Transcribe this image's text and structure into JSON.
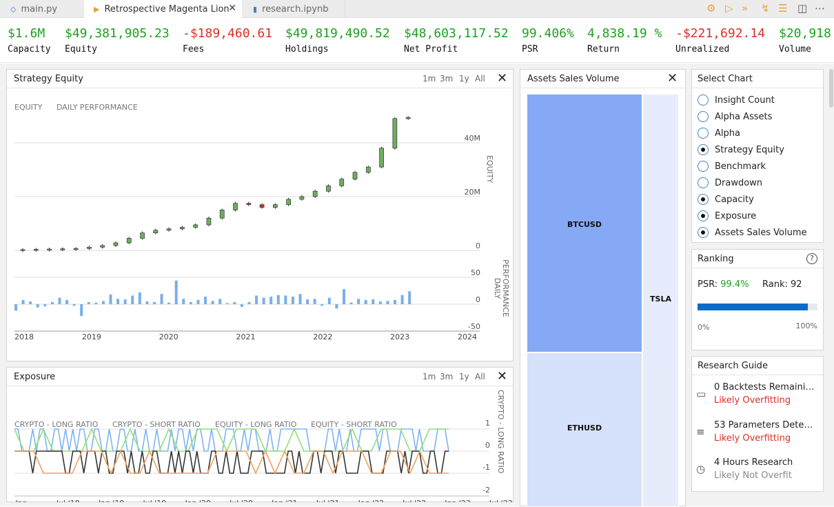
{
  "tabs": [
    {
      "label": "main.py",
      "icon": "python-icon"
    },
    {
      "label": "Retrospective Magenta Lion",
      "icon": "play-icon"
    },
    {
      "label": "research.ipynb",
      "icon": "notebook-icon"
    }
  ],
  "stats": [
    {
      "value": "$1.6M",
      "label": "Capacity",
      "tone": "pos"
    },
    {
      "value": "$49,381,905.23",
      "label": "Equity",
      "tone": "pos"
    },
    {
      "value": "-$189,460.61",
      "label": "Fees",
      "tone": "neg"
    },
    {
      "value": "$49,819,490.52",
      "label": "Holdings",
      "tone": "pos"
    },
    {
      "value": "$48,603,117.52",
      "label": "Net Profit",
      "tone": "pos"
    },
    {
      "value": "99.406%",
      "label": "PSR",
      "tone": "pos"
    },
    {
      "value": "4,838.19 %",
      "label": "Return",
      "tone": "pos"
    },
    {
      "value": "-$221,692.14",
      "label": "Unrealized",
      "tone": "neg"
    },
    {
      "value": "$20,918",
      "label": "Volume",
      "tone": "pos"
    }
  ],
  "ranges": [
    "1m",
    "3m",
    "1y",
    "All"
  ],
  "equity_panel": {
    "title": "Strategy Equity",
    "legend": [
      "EQUITY",
      "DAILY PERFORMANCE"
    ],
    "y_axis_label": "EQUITY",
    "y2_axis_label": "DAILY PERFORMANCE",
    "y_ticks": [
      "40M",
      "20M",
      "0"
    ],
    "y2_ticks": [
      "50",
      "0",
      "-50"
    ],
    "x_ticks": [
      "2018",
      "2019",
      "2020",
      "2021",
      "2022",
      "2023",
      "2024"
    ]
  },
  "exposure_panel": {
    "title": "Exposure",
    "legend": [
      "CRYPTO - LONG RATIO",
      "CRYPTO - SHORT RATIO",
      "EQUITY - LONG RATIO",
      "EQUITY - SHORT RATIO"
    ],
    "y_axis_label": "CRYPTO - LONG RATIO",
    "y_ticks": [
      "1",
      "0",
      "-1",
      "-2"
    ],
    "x_ticks": [
      "Jan...",
      "Jul '18",
      "Jan '19",
      "Jul '19",
      "Jan '20",
      "Jul '20",
      "Jan '21",
      "Jul '21",
      "Jan '22",
      "Jul '22",
      "Jan '23",
      "Jul '23"
    ]
  },
  "assets_panel": {
    "title": "Assets Sales Volume",
    "labels": [
      "BTCUSD",
      "ETHUSD",
      "TSLA"
    ]
  },
  "select_chart": {
    "title": "Select Chart",
    "options": [
      {
        "label": "Insight Count",
        "checked": false
      },
      {
        "label": "Alpha Assets",
        "checked": false
      },
      {
        "label": "Alpha",
        "checked": false
      },
      {
        "label": "Strategy Equity",
        "checked": true
      },
      {
        "label": "Benchmark",
        "checked": false
      },
      {
        "label": "Drawdown",
        "checked": false
      },
      {
        "label": "Capacity",
        "checked": true
      },
      {
        "label": "Exposure",
        "checked": true
      },
      {
        "label": "Assets Sales Volume",
        "checked": true
      }
    ]
  },
  "ranking": {
    "title": "Ranking",
    "psr_label": "PSR:",
    "psr_value": "99.4%",
    "rank_label": "Rank: 92",
    "progress": 0.92,
    "min_label": "0%",
    "max_label": "100%"
  },
  "research_guide": {
    "title": "Research Guide",
    "items": [
      {
        "icon": "battery-icon",
        "title": "0 Backtests Remaini…",
        "status": "Likely Overfitting",
        "tone": "neg"
      },
      {
        "icon": "sliders-icon",
        "title": "53 Parameters Dete…",
        "status": "Likely Overfitting",
        "tone": "neg"
      },
      {
        "icon": "clock-icon",
        "title": "4 Hours Research",
        "status": "Likely Not Overfit",
        "tone": "muted"
      }
    ]
  },
  "colors": {
    "accent": "#0a6bc8",
    "positive": "#1ea21e",
    "negative": "#d93025",
    "candle_up": "#6fae5f",
    "candle_down": "#c0392b",
    "bar": "#7aaee8",
    "btc": "#86a9f5",
    "eth": "#d6e1fb",
    "tsla": "#e6ecfb",
    "exp_blue": "#7eb3f1",
    "exp_green": "#8fe07a",
    "exp_black": "#333333",
    "exp_orange": "#f0a15e"
  },
  "chart_data": [
    {
      "type": "candlestick",
      "title": "Strategy Equity",
      "ylabel": "EQUITY",
      "ylim": [
        0,
        52000000
      ],
      "x": [
        "2018-01",
        "2018-04",
        "2018-07",
        "2018-10",
        "2019-01",
        "2019-04",
        "2019-07",
        "2019-10",
        "2020-01",
        "2020-04",
        "2020-07",
        "2020-10",
        "2021-01",
        "2021-02",
        "2021-04",
        "2021-06",
        "2021-07",
        "2021-09",
        "2021-10",
        "2021-12",
        "2022-01",
        "2022-03",
        "2022-04",
        "2022-06",
        "2022-07",
        "2022-09",
        "2022-10",
        "2022-11",
        "2022-12",
        "2023-01"
      ],
      "close": [
        0.3,
        0.4,
        0.5,
        0.6,
        0.7,
        1.2,
        1.8,
        2.8,
        4.5,
        6.5,
        7.5,
        8.0,
        8.6,
        9.5,
        12.0,
        15.0,
        17.5,
        17.0,
        16.0,
        17.0,
        19.0,
        20.0,
        22.0,
        24.0,
        26.5,
        29.0,
        31.0,
        38.0,
        49.0,
        49.4
      ]
    },
    {
      "type": "bar",
      "title": "Daily Performance",
      "ylabel": "DAILY PERFORMANCE",
      "ylim": [
        -50,
        50
      ],
      "values": [
        -12,
        8,
        5,
        -6,
        -4,
        4,
        12,
        8,
        -3,
        -22,
        4,
        3,
        6,
        18,
        10,
        9,
        16,
        22,
        5,
        4,
        19,
        3,
        44,
        10,
        4,
        8,
        14,
        6,
        10,
        2,
        4,
        -5,
        4,
        16,
        12,
        14,
        17,
        16,
        14,
        19,
        9,
        10,
        -3,
        12,
        -8,
        28,
        3,
        10,
        8,
        9,
        5,
        6,
        8,
        17,
        24
      ]
    },
    {
      "type": "line",
      "title": "Exposure",
      "ylim": [
        -2,
        1
      ],
      "series": [
        {
          "name": "CRYPTO - LONG RATIO"
        },
        {
          "name": "CRYPTO - SHORT RATIO"
        },
        {
          "name": "EQUITY - LONG RATIO"
        },
        {
          "name": "EQUITY - SHORT RATIO"
        }
      ]
    },
    {
      "type": "treemap",
      "title": "Assets Sales Volume",
      "categories": [
        "BTCUSD",
        "ETHUSD",
        "TSLA"
      ],
      "values": [
        35,
        21,
        9
      ]
    }
  ]
}
